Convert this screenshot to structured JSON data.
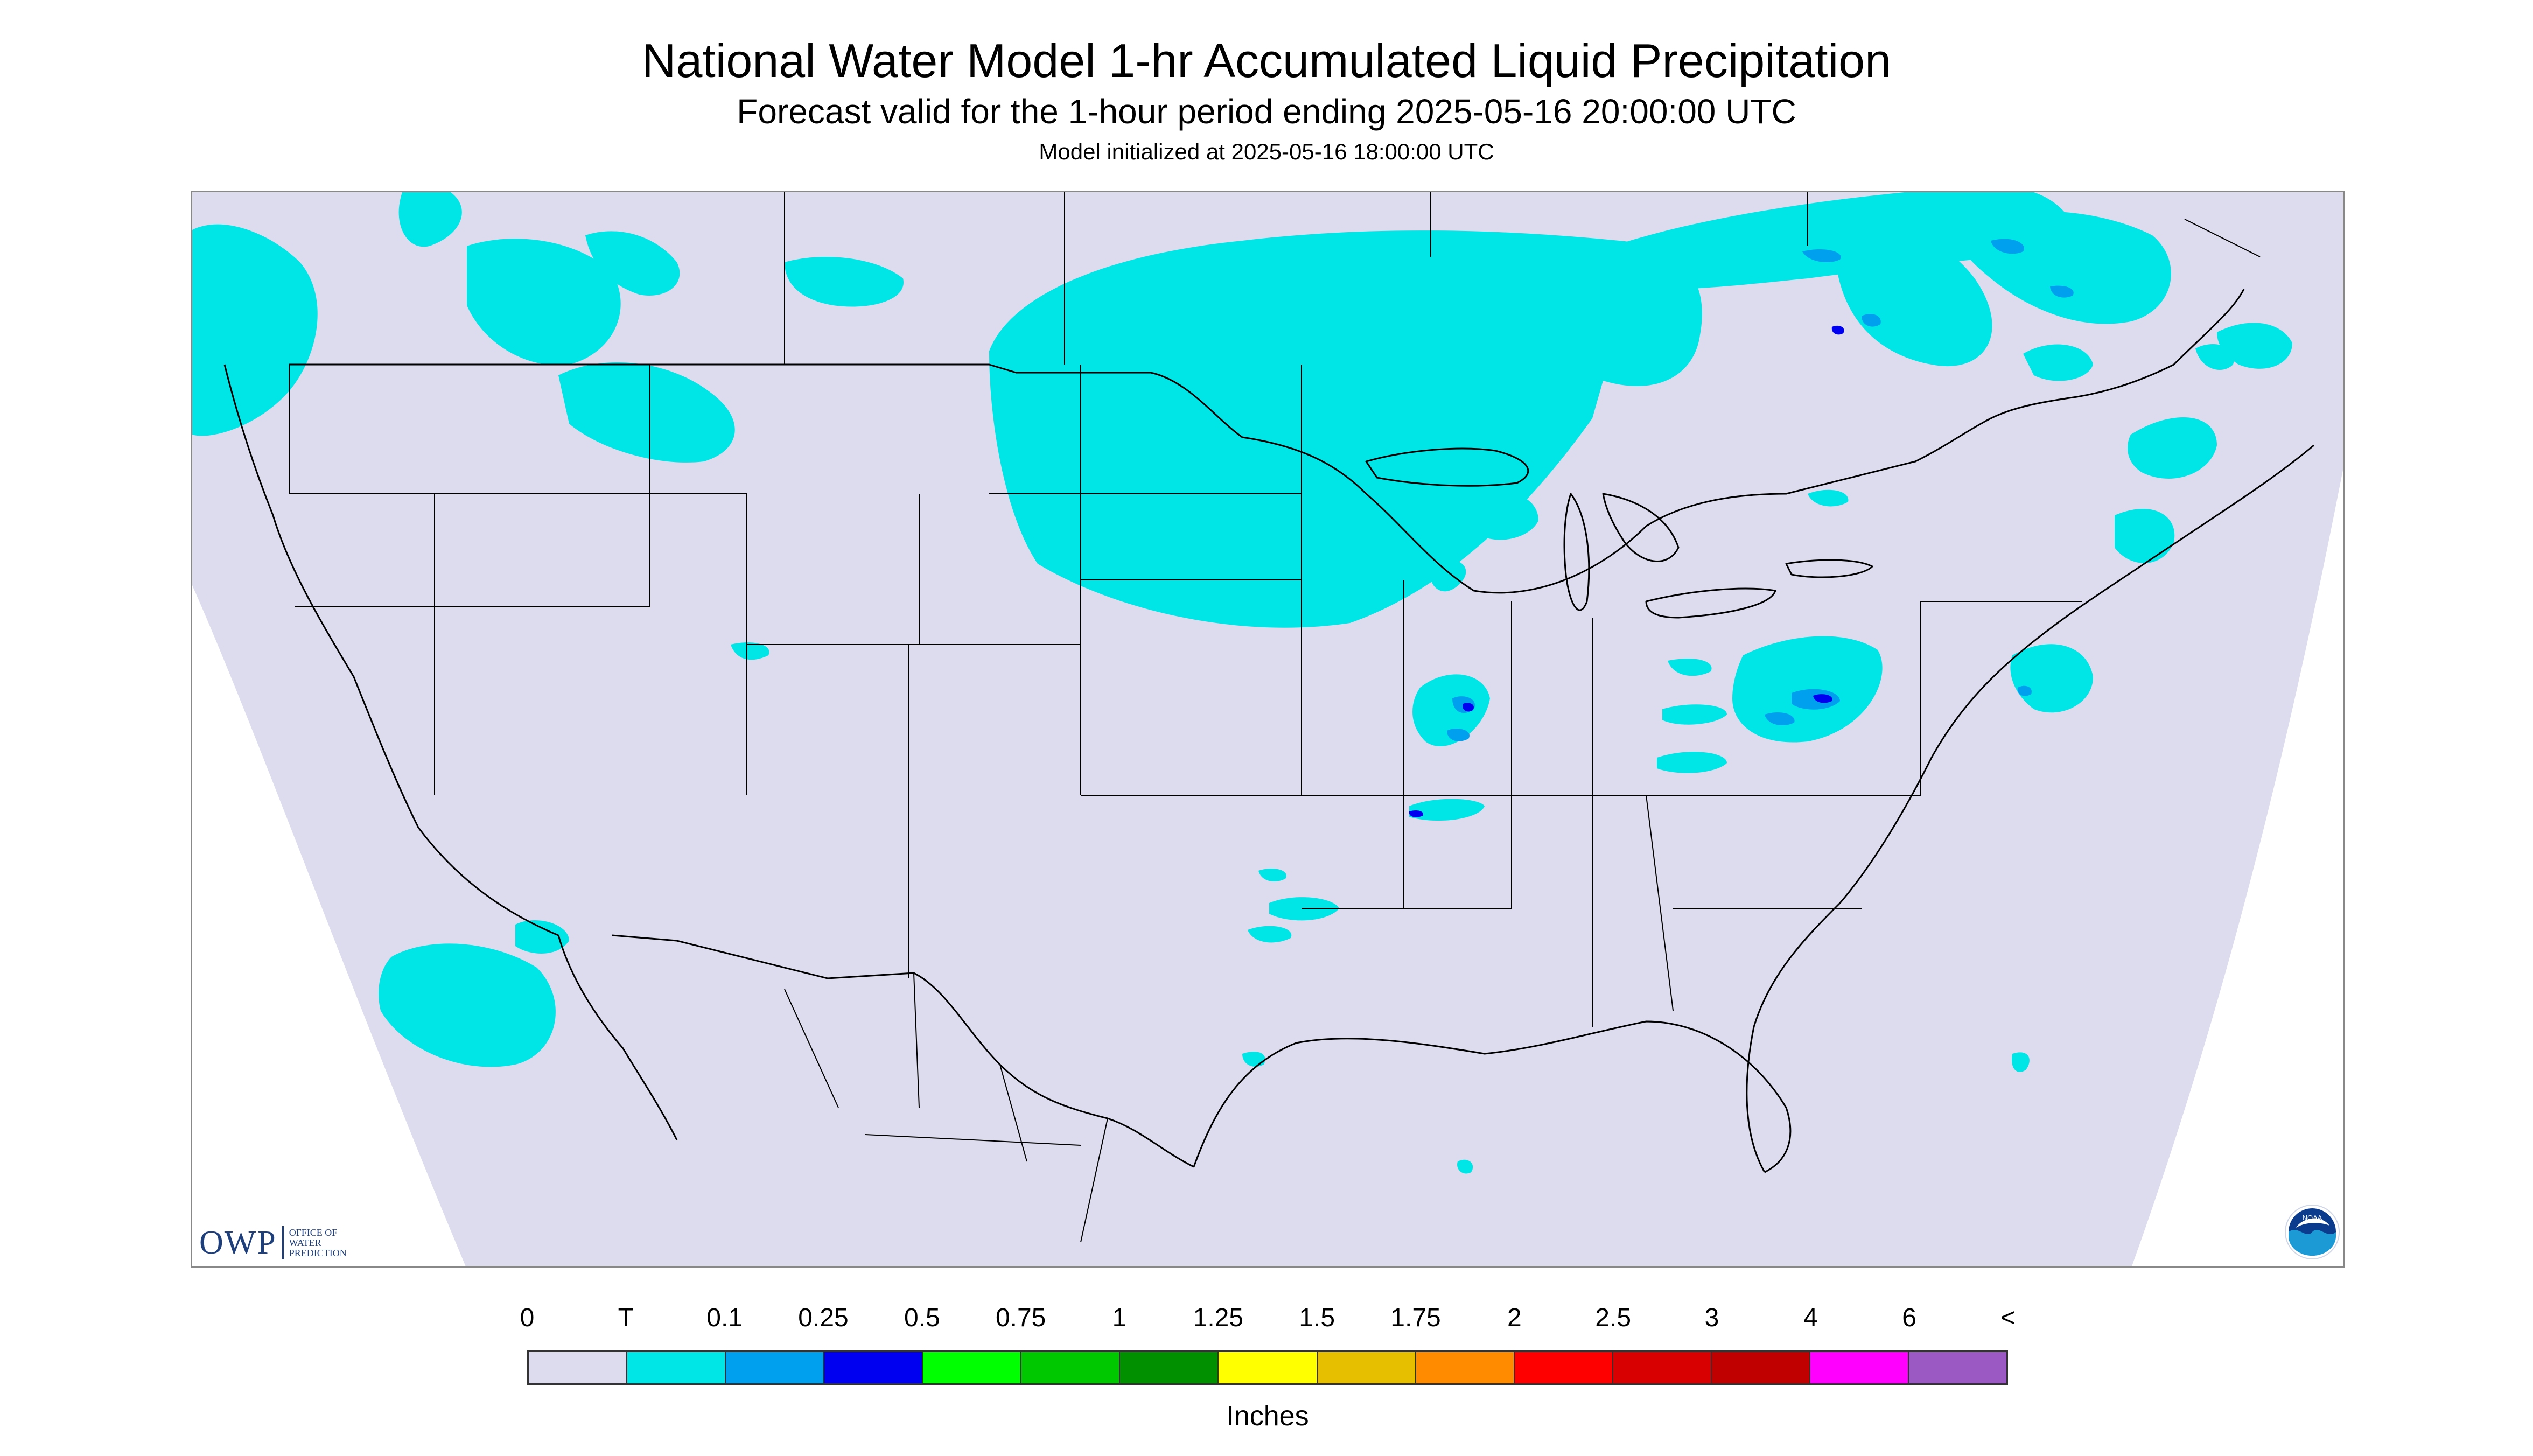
{
  "title": "National Water Model 1-hr Accumulated Liquid Precipitation",
  "subtitle": "Forecast valid for the 1-hour period ending 2025-05-16 20:00:00 UTC",
  "init_line": "Model initialized at 2025-05-16 18:00:00 UTC",
  "owp_logo": {
    "letters": "OWP",
    "sub_lines": [
      "OFFICE OF",
      "WATER",
      "PREDICTION"
    ]
  },
  "noaa_logo": {
    "text": "NOAA"
  },
  "legend": {
    "ticks": [
      "0",
      "T",
      "0.1",
      "0.25",
      "0.5",
      "0.75",
      "1",
      "1.25",
      "1.5",
      "1.75",
      "2",
      "2.5",
      "3",
      "4",
      "6",
      "<"
    ],
    "colors": [
      "#dcdcee",
      "#00e5e6",
      "#00a0ef",
      "#0000f0",
      "#00ff00",
      "#00c800",
      "#009000",
      "#ffff00",
      "#e6c000",
      "#ff8c00",
      "#ff0000",
      "#d80000",
      "#c00000",
      "#ff00ff",
      "#9b59c4"
    ],
    "units": "Inches"
  },
  "map_colors": {
    "domain_fill": "#dcdcee",
    "outside_fill": "#ffffff",
    "light_precip": "#00e5e6",
    "moderate_precip": "#00a0ef",
    "heavy_precip": "#0000f0",
    "boundary": "#000000"
  }
}
